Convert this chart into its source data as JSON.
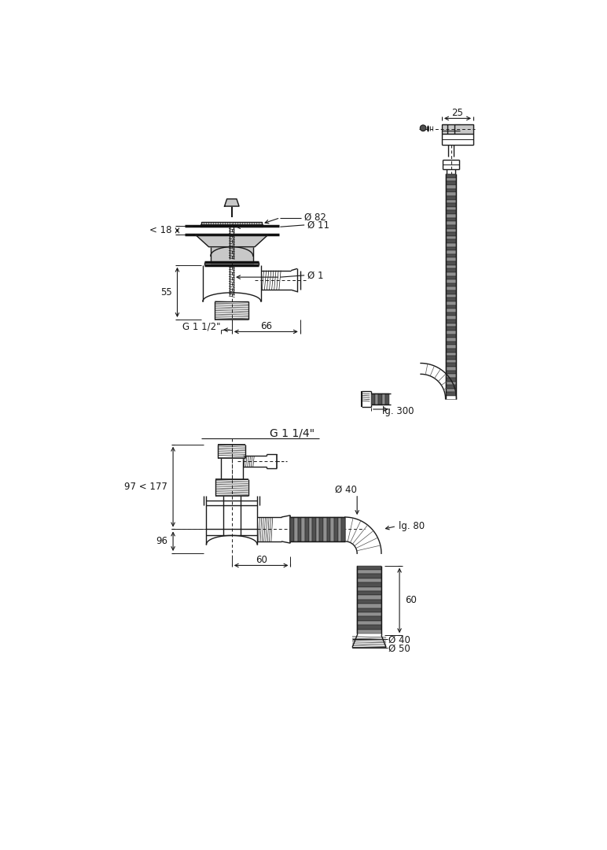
{
  "bg_color": "#ffffff",
  "lc": "#1a1a1a",
  "tc": "#1a1a1a",
  "gray_light": "#c8c8c8",
  "gray_mid": "#909090",
  "gray_dark": "#505050",
  "annotations": {
    "diam_82": "Ø 82",
    "diam_11": "Ø 11",
    "diam_1": "Ø 1",
    "dim_18": "< 18",
    "dim_55": "55",
    "dim_66": "66",
    "g112": "G 1 1/2\"",
    "dim_25": "25",
    "lg300": "lg. 300",
    "g114": "G 1 1/4\"",
    "diam_40a": "Ø 40",
    "lg80": "lg. 80",
    "dim_97_177": "97 < 177",
    "dim_96": "96",
    "dim_60a": "60",
    "dim_60b": "60",
    "diam_40b": "Ø 40",
    "diam_50": "Ø 50"
  }
}
